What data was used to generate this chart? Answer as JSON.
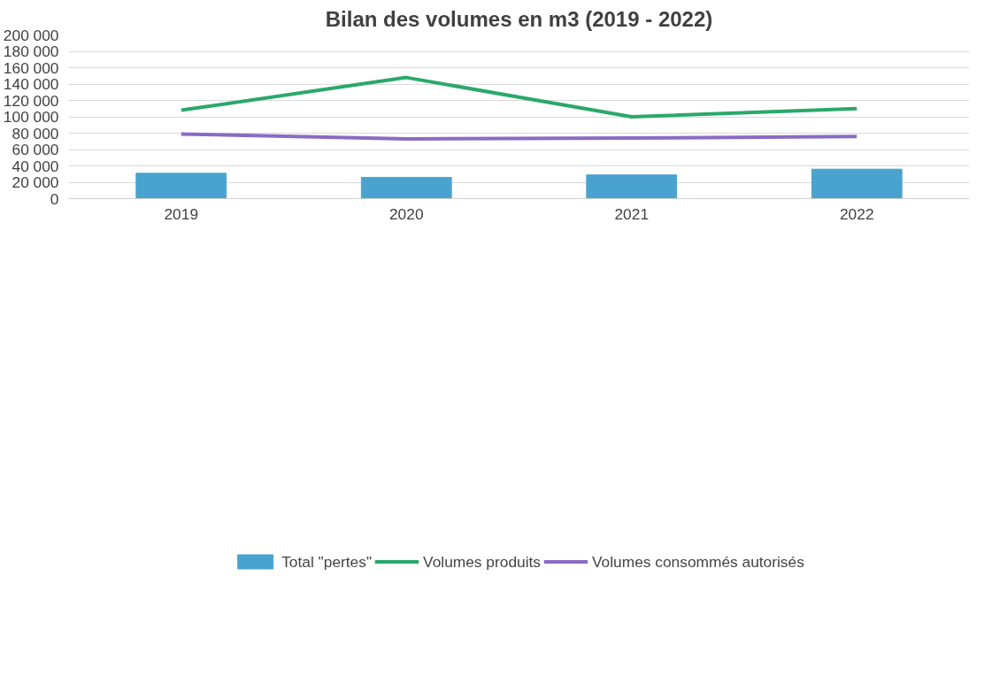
{
  "chart_data": {
    "type": "bar",
    "title": "Bilan des volumes en m3 (2019 - 2022)",
    "categories": [
      "2019",
      "2020",
      "2021",
      "2022"
    ],
    "series": [
      {
        "name": "Total \"pertes\"",
        "color": "#4aa3cf",
        "values": [
          31000,
          26000,
          29000,
          36000
        ]
      },
      {
        "name": "Volumes produits",
        "type": "line",
        "color": "#2aa86a",
        "values": [
          108000,
          148000,
          100000,
          110000
        ]
      },
      {
        "name": "Volumes consommés autorisés",
        "type": "line",
        "color": "#8a6bc4",
        "values": [
          79000,
          73000,
          74000,
          76000
        ]
      }
    ],
    "ylim": [
      0,
      200000
    ],
    "yticks": [
      {
        "value": 0,
        "label": "0"
      },
      {
        "value": 20000,
        "label": "20 000"
      },
      {
        "value": 40000,
        "label": "40 000"
      },
      {
        "value": 60000,
        "label": "60 000"
      },
      {
        "value": 80000,
        "label": "80 000"
      },
      {
        "value": 100000,
        "label": "100 000"
      },
      {
        "value": 120000,
        "label": "120 000"
      },
      {
        "value": 140000,
        "label": "140 000"
      },
      {
        "value": 160000,
        "label": "160 000"
      },
      {
        "value": 180000,
        "label": "180 000"
      },
      {
        "value": 200000,
        "label": "200 000"
      }
    ],
    "grid": "y",
    "legend": "bottom"
  }
}
